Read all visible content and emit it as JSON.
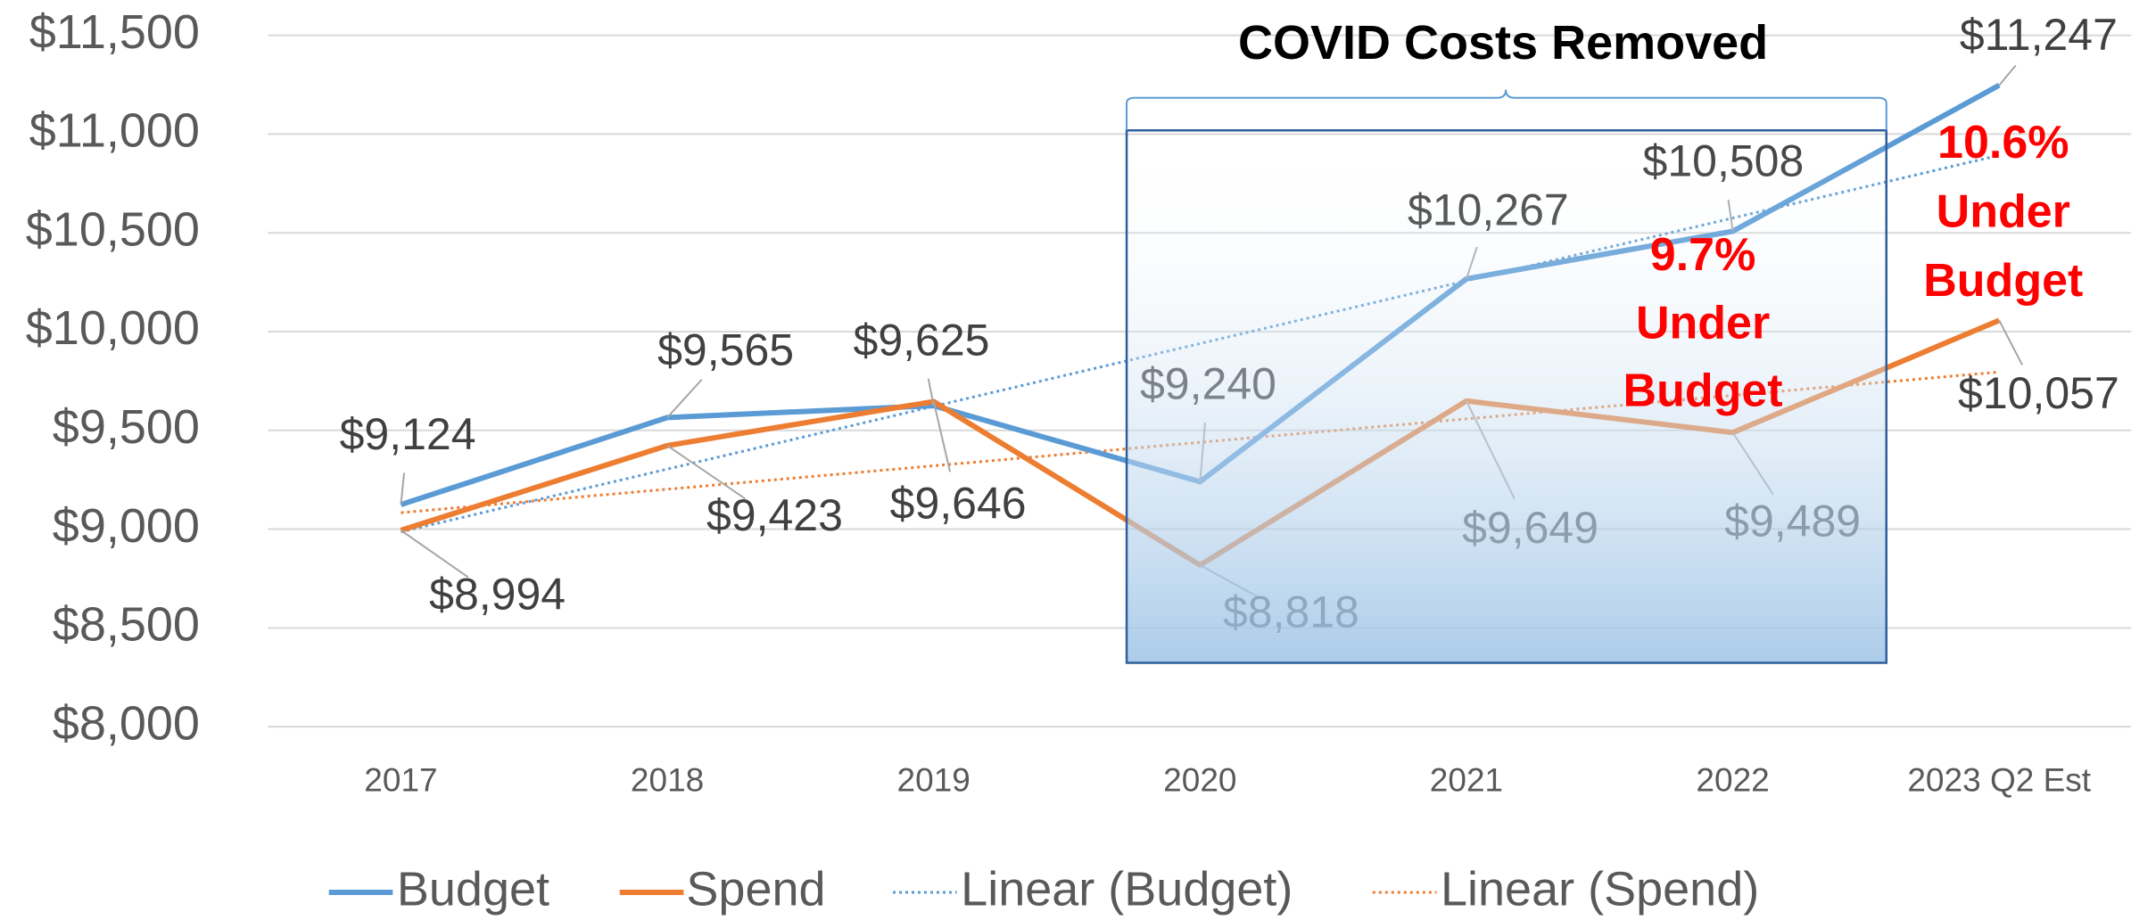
{
  "chart_data": {
    "type": "line",
    "categories": [
      "2017",
      "2018",
      "2019",
      "2020",
      "2021",
      "2022",
      "2023 Q2 Est"
    ],
    "series": [
      {
        "name": "Budget",
        "color": "#5b9bd5",
        "values": [
          9124,
          9565,
          9625,
          9240,
          10267,
          10508,
          11247
        ],
        "value_labels": [
          "$9,124",
          "$9,565",
          "$9,625",
          "$9,240",
          "$10,267",
          "$10,508",
          "$11,247"
        ],
        "trendline": {
          "name": "Linear (Budget)",
          "style": "dotted"
        }
      },
      {
        "name": "Spend",
        "color": "#ed7d31",
        "values": [
          8994,
          9423,
          9646,
          8818,
          9649,
          9489,
          10057
        ],
        "value_labels": [
          "$8,994",
          "$9,423",
          "$9,646",
          "$8,818",
          "$9,649",
          "$9,489",
          "$10,057"
        ],
        "trendline": {
          "name": "Linear (Spend)",
          "style": "dotted"
        }
      }
    ],
    "ylim": [
      8000,
      11500
    ],
    "yticks": [
      {
        "value": 8000,
        "label": "$8,000"
      },
      {
        "value": 8500,
        "label": "$8,500"
      },
      {
        "value": 9000,
        "label": "$9,000"
      },
      {
        "value": 9500,
        "label": "$9,500"
      },
      {
        "value": 10000,
        "label": "$10,000"
      },
      {
        "value": 10500,
        "label": "$10,500"
      },
      {
        "value": 11000,
        "label": "$11,000"
      },
      {
        "value": 11500,
        "label": "$11,500"
      }
    ],
    "grid": true,
    "legend": "bottom",
    "annotations": {
      "covid_box": "COVID Costs Removed",
      "under_2022": [
        "9.7%",
        "Under",
        "Budget"
      ],
      "under_2023": [
        "10.6%",
        "Under",
        "Budget"
      ]
    }
  }
}
